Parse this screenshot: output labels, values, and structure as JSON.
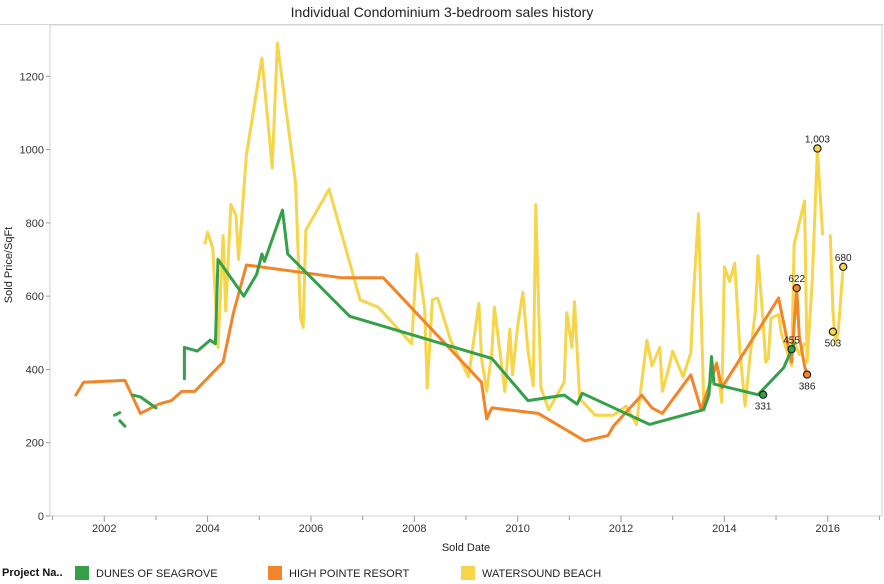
{
  "title": "Individual Condominium 3-bedroom sales history",
  "legend": {
    "title": "Project Na..",
    "items": [
      {
        "label": "DUNES OF SEAGROVE",
        "color": "#34a04a"
      },
      {
        "label": "HIGH POINTE RESORT",
        "color": "#f28527"
      },
      {
        "label": "WATERSOUND BEACH",
        "color": "#f7d54a"
      }
    ]
  },
  "chart_data": {
    "type": "line",
    "title": "Individual Condominium 3-bedroom sales history",
    "xlabel": "Sold Date",
    "ylabel": "Sold Price/SqFt",
    "xlim": [
      2000.95,
      2017.05
    ],
    "ylim": [
      0,
      1340
    ],
    "x_ticks": [
      2002,
      2004,
      2006,
      2008,
      2010,
      2012,
      2014,
      2016
    ],
    "y_ticks": [
      0,
      200,
      400,
      600,
      800,
      1000,
      1200
    ],
    "grid": false,
    "legend_position": "bottom",
    "series": [
      {
        "name": "WATERSOUND BEACH",
        "color": "#f7d54a",
        "segments": [
          [
            [
              2003.95,
              745
            ],
            [
              2004.0,
              775
            ],
            [
              2004.1,
              730
            ],
            [
              2004.2,
              460
            ],
            [
              2004.3,
              765
            ],
            [
              2004.35,
              560
            ],
            [
              2004.45,
              850
            ],
            [
              2004.55,
              820
            ],
            [
              2004.6,
              700
            ],
            [
              2004.75,
              985
            ],
            [
              2005.05,
              1250
            ],
            [
              2005.25,
              950
            ],
            [
              2005.35,
              1290
            ],
            [
              2005.7,
              910
            ],
            [
              2005.8,
              540
            ],
            [
              2005.85,
              515
            ],
            [
              2005.9,
              780
            ],
            [
              2006.35,
              892
            ],
            [
              2006.95,
              590
            ],
            [
              2007.3,
              570
            ],
            [
              2007.95,
              470
            ],
            [
              2008.05,
              715
            ],
            [
              2008.2,
              565
            ],
            [
              2008.25,
              350
            ],
            [
              2008.35,
              590
            ],
            [
              2008.45,
              595
            ],
            [
              2008.7,
              480
            ],
            [
              2009.05,
              380
            ],
            [
              2009.25,
              580
            ],
            [
              2009.3,
              430
            ],
            [
              2009.4,
              340
            ],
            [
              2009.5,
              445
            ],
            [
              2009.55,
              570
            ],
            [
              2009.75,
              340
            ],
            [
              2009.85,
              510
            ],
            [
              2009.9,
              385
            ],
            [
              2010.0,
              520
            ],
            [
              2010.1,
              610
            ],
            [
              2010.2,
              450
            ],
            [
              2010.3,
              355
            ],
            [
              2010.35,
              850
            ],
            [
              2010.45,
              350
            ],
            [
              2010.6,
              290
            ],
            [
              2010.9,
              365
            ],
            [
              2010.95,
              555
            ],
            [
              2011.05,
              460
            ],
            [
              2011.1,
              585
            ],
            [
              2011.2,
              320
            ],
            [
              2011.5,
              275
            ],
            [
              2011.85,
              275
            ],
            [
              2012.1,
              300
            ],
            [
              2012.3,
              250
            ],
            [
              2012.5,
              480
            ],
            [
              2012.6,
              410
            ],
            [
              2012.75,
              460
            ],
            [
              2012.8,
              340
            ],
            [
              2012.9,
              390
            ],
            [
              2013.0,
              450
            ],
            [
              2013.2,
              380
            ],
            [
              2013.35,
              445
            ],
            [
              2013.4,
              600
            ],
            [
              2013.5,
              825
            ],
            [
              2013.6,
              310
            ],
            [
              2013.75,
              370
            ],
            [
              2013.85,
              420
            ],
            [
              2013.95,
              310
            ],
            [
              2014.0,
              680
            ],
            [
              2014.1,
              640
            ],
            [
              2014.2,
              690
            ],
            [
              2014.3,
              450
            ],
            [
              2014.4,
              300
            ],
            [
              2014.5,
              440
            ],
            [
              2014.6,
              560
            ],
            [
              2014.65,
              710
            ],
            [
              2014.75,
              530
            ],
            [
              2014.8,
              420
            ],
            [
              2014.85,
              430
            ],
            [
              2014.9,
              540
            ],
            [
              2015.05,
              550
            ],
            [
              2015.1,
              500
            ],
            [
              2015.3,
              410
            ],
            [
              2015.35,
              740
            ],
            [
              2015.45,
              800
            ],
            [
              2015.55,
              860
            ],
            [
              2015.6,
              420
            ],
            [
              2015.7,
              640
            ],
            [
              2015.8,
              1000
            ],
            [
              2015.9,
              770
            ]
          ],
          [
            [
              2016.05,
              765
            ],
            [
              2016.1,
              560
            ],
            [
              2016.15,
              470
            ],
            [
              2016.2,
              500
            ],
            [
              2016.3,
              680
            ]
          ],
          [
            [
              2015.35,
              480
            ],
            [
              2015.45,
              440
            ],
            [
              2015.55,
              470
            ]
          ]
        ],
        "markers": [
          {
            "x": 2015.8,
            "y": 1003,
            "label": "1,003"
          },
          {
            "x": 2016.1,
            "y": 503,
            "label": "503"
          },
          {
            "x": 2016.3,
            "y": 680,
            "label": "680"
          }
        ]
      },
      {
        "name": "HIGH POINTE RESORT",
        "color": "#f28527",
        "segments": [
          [
            [
              2001.45,
              330
            ],
            [
              2001.6,
              365
            ],
            [
              2002.4,
              370
            ],
            [
              2002.7,
              280
            ],
            [
              2003.05,
              305
            ],
            [
              2003.3,
              315
            ],
            [
              2003.5,
              340
            ],
            [
              2003.75,
              340
            ],
            [
              2004.3,
              420
            ],
            [
              2004.5,
              555
            ],
            [
              2004.75,
              685
            ],
            [
              2006.6,
              650
            ],
            [
              2007.4,
              650
            ],
            [
              2009.3,
              365
            ],
            [
              2009.4,
              265
            ],
            [
              2009.5,
              295
            ],
            [
              2010.4,
              280
            ],
            [
              2011.3,
              205
            ],
            [
              2011.75,
              220
            ],
            [
              2011.85,
              245
            ],
            [
              2012.4,
              330
            ],
            [
              2012.6,
              295
            ],
            [
              2012.8,
              280
            ],
            [
              2013.35,
              385
            ],
            [
              2013.55,
              290
            ],
            [
              2013.85,
              415
            ],
            [
              2013.95,
              350
            ],
            [
              2015.05,
              595
            ],
            [
              2015.3,
              420
            ],
            [
              2015.4,
              622
            ],
            [
              2015.45,
              490
            ],
            [
              2015.55,
              410
            ],
            [
              2015.6,
              386
            ]
          ]
        ],
        "markers": [
          {
            "x": 2015.4,
            "y": 622,
            "label": "622"
          },
          {
            "x": 2015.6,
            "y": 386,
            "label": "386"
          }
        ]
      },
      {
        "name": "DUNES OF SEAGROVE",
        "color": "#34a04a",
        "segments": [
          [
            [
              2002.2,
              275
            ],
            [
              2002.3,
              282
            ]
          ],
          [
            [
              2002.3,
              260
            ],
            [
              2002.4,
              245
            ]
          ],
          [
            [
              2002.55,
              330
            ],
            [
              2002.7,
              325
            ],
            [
              2003.0,
              295
            ]
          ],
          [
            [
              2003.55,
              375
            ],
            [
              2003.55,
              460
            ],
            [
              2003.8,
              450
            ],
            [
              2004.05,
              480
            ],
            [
              2004.15,
              470
            ],
            [
              2004.2,
              700
            ],
            [
              2004.7,
              600
            ],
            [
              2004.95,
              660
            ],
            [
              2005.05,
              715
            ],
            [
              2005.1,
              695
            ],
            [
              2005.45,
              835
            ],
            [
              2005.55,
              715
            ],
            [
              2006.75,
              545
            ],
            [
              2009.5,
              430
            ],
            [
              2010.2,
              315
            ],
            [
              2010.9,
              330
            ],
            [
              2011.15,
              305
            ],
            [
              2011.25,
              335
            ],
            [
              2012.55,
              250
            ],
            [
              2013.6,
              290
            ],
            [
              2013.7,
              330
            ],
            [
              2013.75,
              435
            ],
            [
              2013.8,
              360
            ],
            [
              2014.65,
              331
            ],
            [
              2015.15,
              405
            ],
            [
              2015.3,
              455
            ],
            [
              2015.35,
              470
            ]
          ]
        ],
        "markers": [
          {
            "x": 2014.75,
            "y": 331,
            "label": "331"
          },
          {
            "x": 2015.3,
            "y": 455,
            "label": "455"
          }
        ]
      }
    ]
  }
}
